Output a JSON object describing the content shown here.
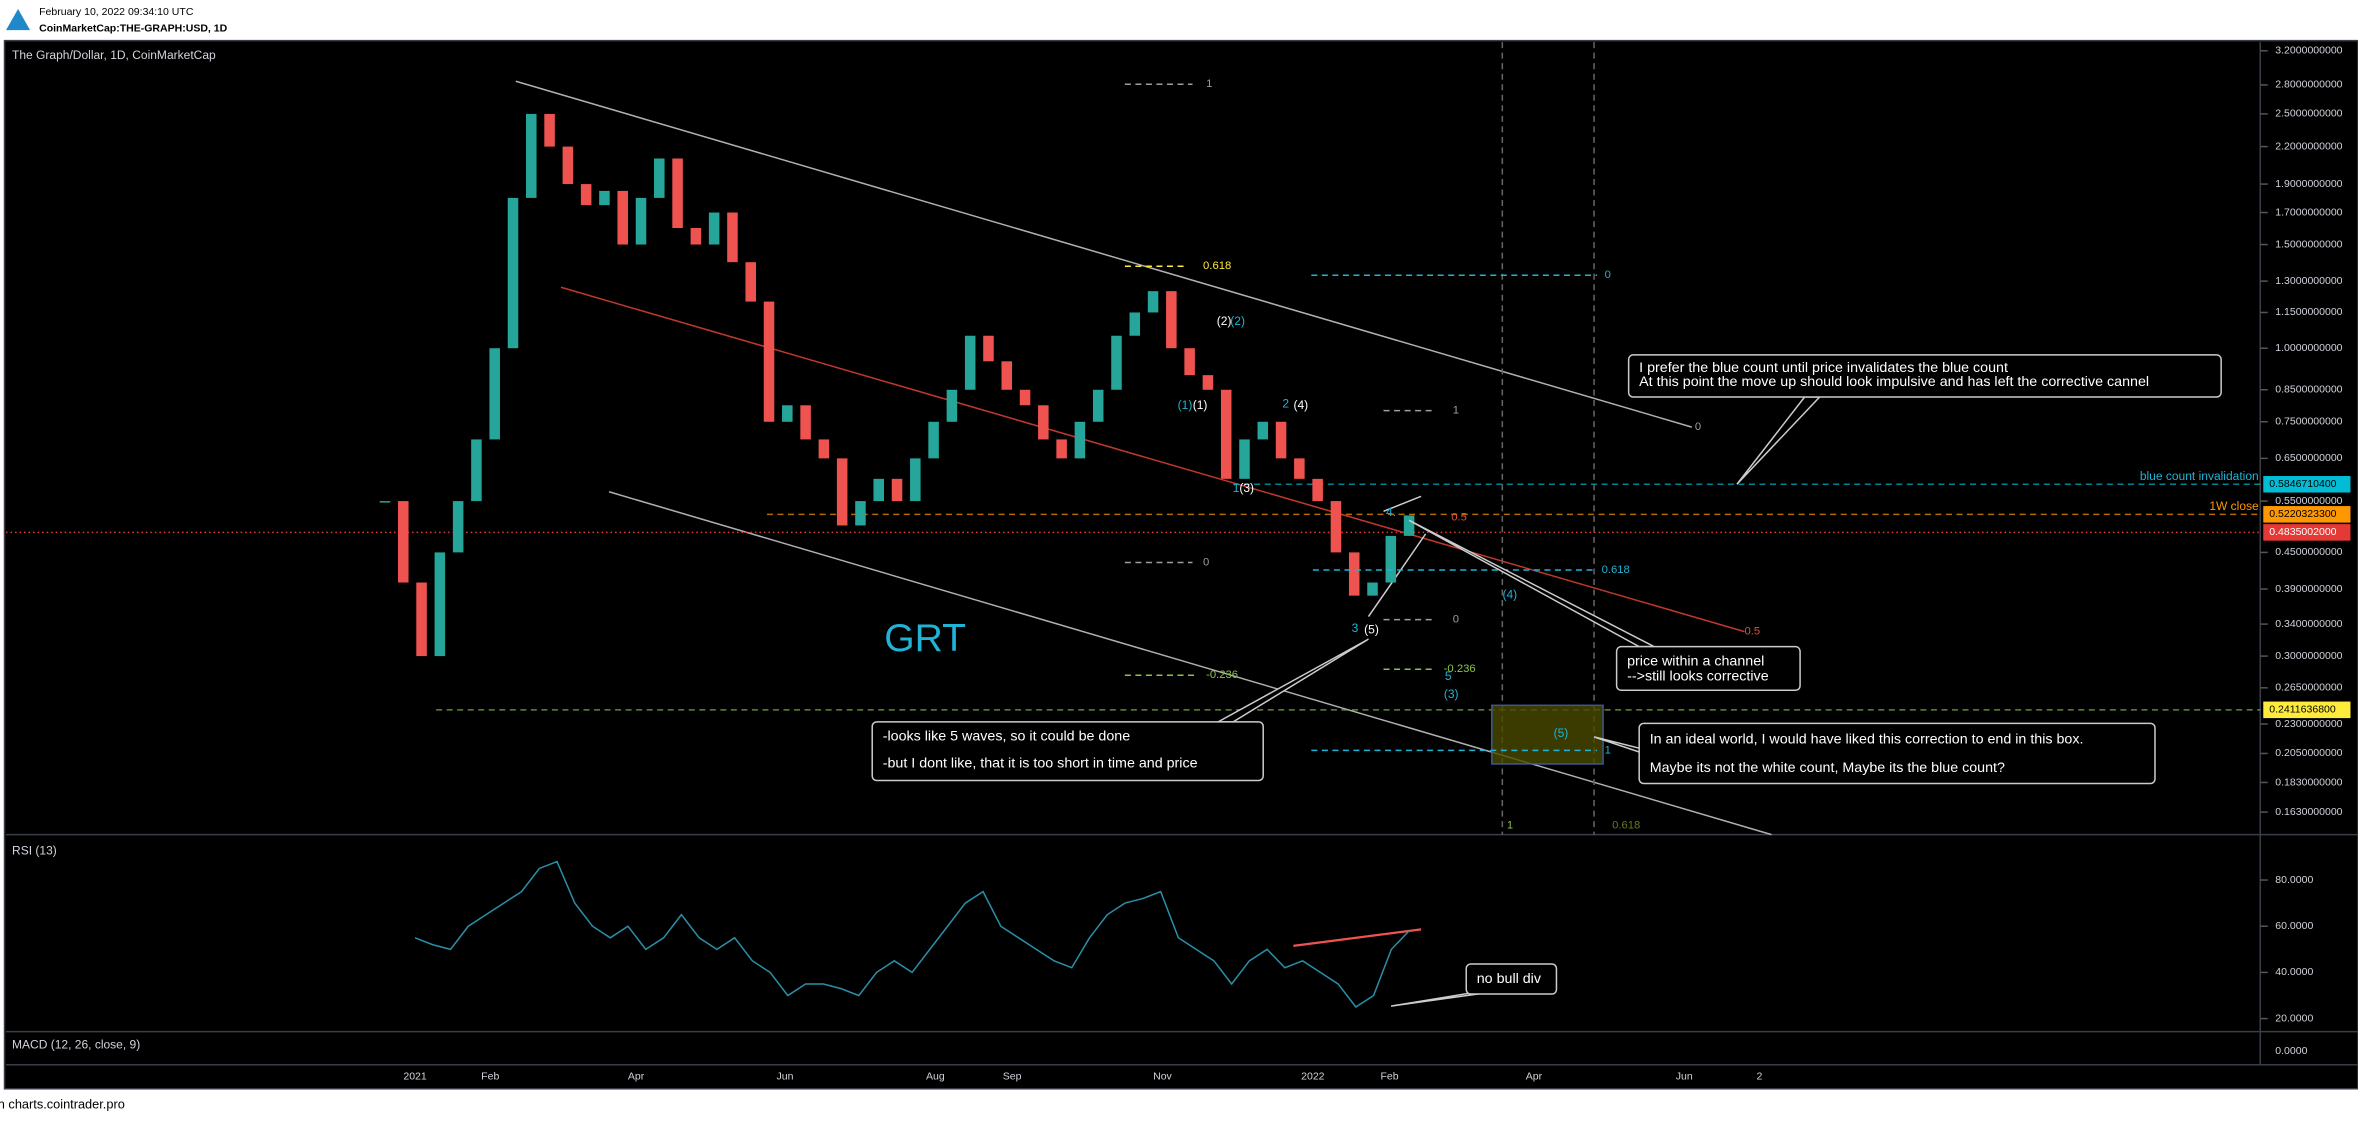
{
  "header": {
    "timestamp": "February 10, 2022 09:34:10 UTC",
    "symbol": "CoinMarketCap:THE-GRAPH:USD, 1D"
  },
  "price_pane": {
    "legend": "The Graph/Dollar, 1D, CoinMarketCap",
    "watermark": "GRT",
    "scale": "log",
    "ylim": [
      0.151,
      3.31
    ],
    "yticks": [
      {
        "value": 3.2,
        "label": "3.2000000000"
      },
      {
        "value": 2.8,
        "label": "2.8000000000"
      },
      {
        "value": 2.5,
        "label": "2.5000000000"
      },
      {
        "value": 2.2,
        "label": "2.2000000000"
      },
      {
        "value": 1.9,
        "label": "1.9000000000"
      },
      {
        "value": 1.7,
        "label": "1.7000000000"
      },
      {
        "value": 1.5,
        "label": "1.5000000000"
      },
      {
        "value": 1.3,
        "label": "1.3000000000"
      },
      {
        "value": 1.15,
        "label": "1.1500000000"
      },
      {
        "value": 1.0,
        "label": "1.0000000000"
      },
      {
        "value": 0.85,
        "label": "0.8500000000"
      },
      {
        "value": 0.75,
        "label": "0.7500000000"
      },
      {
        "value": 0.65,
        "label": "0.6500000000"
      },
      {
        "value": 0.55,
        "label": "0.5500000000"
      },
      {
        "value": 0.45,
        "label": "0.4500000000"
      },
      {
        "value": 0.39,
        "label": "0.3900000000"
      },
      {
        "value": 0.34,
        "label": "0.3400000000"
      },
      {
        "value": 0.3,
        "label": "0.3000000000"
      },
      {
        "value": 0.265,
        "label": "0.2650000000"
      },
      {
        "value": 0.23,
        "label": "0.2300000000"
      },
      {
        "value": 0.205,
        "label": "0.2050000000"
      },
      {
        "value": 0.183,
        "label": "0.1830000000"
      },
      {
        "value": 0.163,
        "label": "0.1630000000"
      }
    ],
    "weekly_closes": [
      0.55,
      0.4,
      0.3,
      0.45,
      0.55,
      0.7,
      1.0,
      1.8,
      2.5,
      2.2,
      1.9,
      1.75,
      1.85,
      1.5,
      1.8,
      2.1,
      1.6,
      1.5,
      1.7,
      1.4,
      1.2,
      0.75,
      0.8,
      0.7,
      0.65,
      0.5,
      0.55,
      0.6,
      0.55,
      0.65,
      0.75,
      0.85,
      1.05,
      0.95,
      0.85,
      0.8,
      0.7,
      0.65,
      0.75,
      0.85,
      1.05,
      1.15,
      1.25,
      1.0,
      0.9,
      0.85,
      0.6,
      0.7,
      0.75,
      0.65,
      0.6,
      0.55,
      0.45,
      0.38,
      0.4,
      0.48,
      0.52
    ],
    "up_color": "#26a69a",
    "down_color": "#ef5350"
  },
  "rsi_pane": {
    "label": "RSI (13)",
    "ylim": [
      15,
      99
    ],
    "yticks": [
      {
        "value": 20,
        "label": "20.0000"
      },
      {
        "value": 40,
        "label": "40.0000"
      },
      {
        "value": 60,
        "label": "60.0000"
      },
      {
        "value": 80,
        "label": "80.0000"
      }
    ],
    "values": [
      55,
      52,
      50,
      60,
      65,
      70,
      75,
      85,
      88,
      70,
      60,
      55,
      60,
      50,
      55,
      65,
      55,
      50,
      55,
      45,
      40,
      30,
      35,
      35,
      33,
      30,
      40,
      45,
      40,
      50,
      60,
      70,
      75,
      60,
      55,
      50,
      45,
      42,
      55,
      65,
      70,
      72,
      75,
      55,
      50,
      45,
      35,
      45,
      50,
      42,
      45,
      40,
      35,
      25,
      30,
      50,
      58
    ],
    "color": "#2a8fa8"
  },
  "macd_pane": {
    "label": "MACD (12, 26, close, 9)",
    "ytick": "0.0000"
  },
  "time_axis": [
    "2021",
    "Feb",
    "Apr",
    "Jun",
    "Aug",
    "Sep",
    "Nov",
    "2022",
    "Feb",
    "Apr",
    "Jun",
    "2"
  ],
  "price_badges": [
    "0.5846710400",
    "0.5220323300",
    "0.4835002000",
    "0.2411636800"
  ],
  "level_labels": [
    "blue count invalidation",
    "1W close"
  ],
  "fib_labels": [
    "1",
    "0.618",
    "0",
    "-0.236",
    "0.5",
    "1",
    "0",
    "-0.236",
    "0",
    "0.618",
    "1",
    "0",
    "0.5",
    "1",
    "0.618"
  ],
  "wave_labels": [
    "(2)",
    "(2)",
    "(1)",
    "(1)",
    "2",
    "(4)",
    "1",
    "(3)",
    "4.",
    "3",
    "(5)",
    "(4)",
    "5",
    "(3)",
    "(5)"
  ],
  "callouts": [
    [
      "I prefer the blue count until price invalidates the blue count",
      "At this point the move up should look impulsive and has left the corrective cannel"
    ],
    [
      "price within a channel",
      "-->still looks corrective"
    ],
    [
      "-looks like 5 waves, so it could be done",
      "-but I dont like, that it is too short in time and price"
    ],
    [
      "In an ideal world, I would have liked this correction to end in this box.",
      "Maybe its not the white count, Maybe its the blue count?"
    ],
    [
      "no bull div"
    ]
  ],
  "footer": "Created on charts.cointrader.pro"
}
